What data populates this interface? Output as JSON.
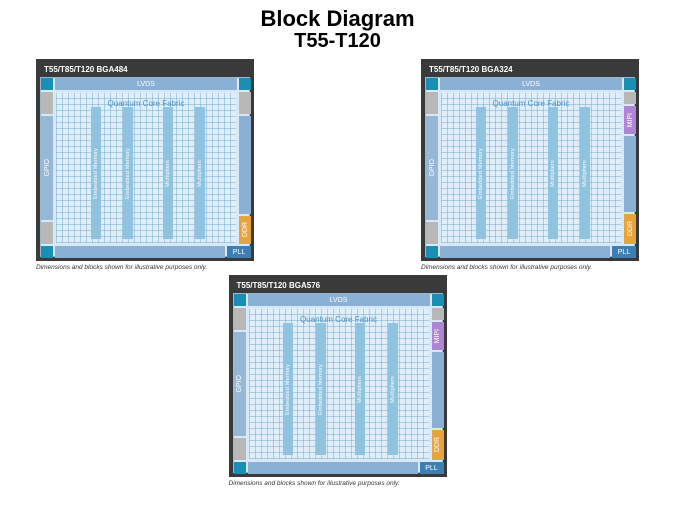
{
  "title": {
    "main": "Block Diagram",
    "sub": "T55-T120"
  },
  "footnote": "Dimensions and blocks shown for illustrative purposes only.",
  "colors": {
    "frame": "#3a3a3a",
    "body_bg": "#d9e8f5",
    "lvds": "#8ab0d6",
    "gpio": "#97b7d6",
    "pll_corner": "#1a8fb5",
    "pll_label": "#3d7fb3",
    "grey_block": "#b8b8b8",
    "mipi": "#b185d6",
    "ddr": "#e8a33c",
    "grid_line": "#7bb0d4",
    "grid_bg": "#dfeef8",
    "column": "#8fc3e0",
    "core_text": "#4a90c2"
  },
  "core": {
    "title": "Quantum Core Fabric",
    "columns": [
      "Embedded Memory",
      "Embedded Memory",
      "Multipliers",
      "Multipliers"
    ]
  },
  "chips": [
    {
      "id": "bga484",
      "label": "T55/T85/T120 BGA484",
      "has_mipi": false,
      "has_right_grey": true
    },
    {
      "id": "bga324",
      "label": "T55/T85/T120 BGA324",
      "has_mipi": true,
      "has_right_grey": false
    },
    {
      "id": "bga576",
      "label": "T55/T85/T120 BGA576",
      "has_mipi": true,
      "has_right_grey": false
    }
  ],
  "labels": {
    "lvds": "LVDS",
    "gpio": "GPIO",
    "pll": "PLL",
    "mipi": "MIPI",
    "ddr": "DDR"
  }
}
